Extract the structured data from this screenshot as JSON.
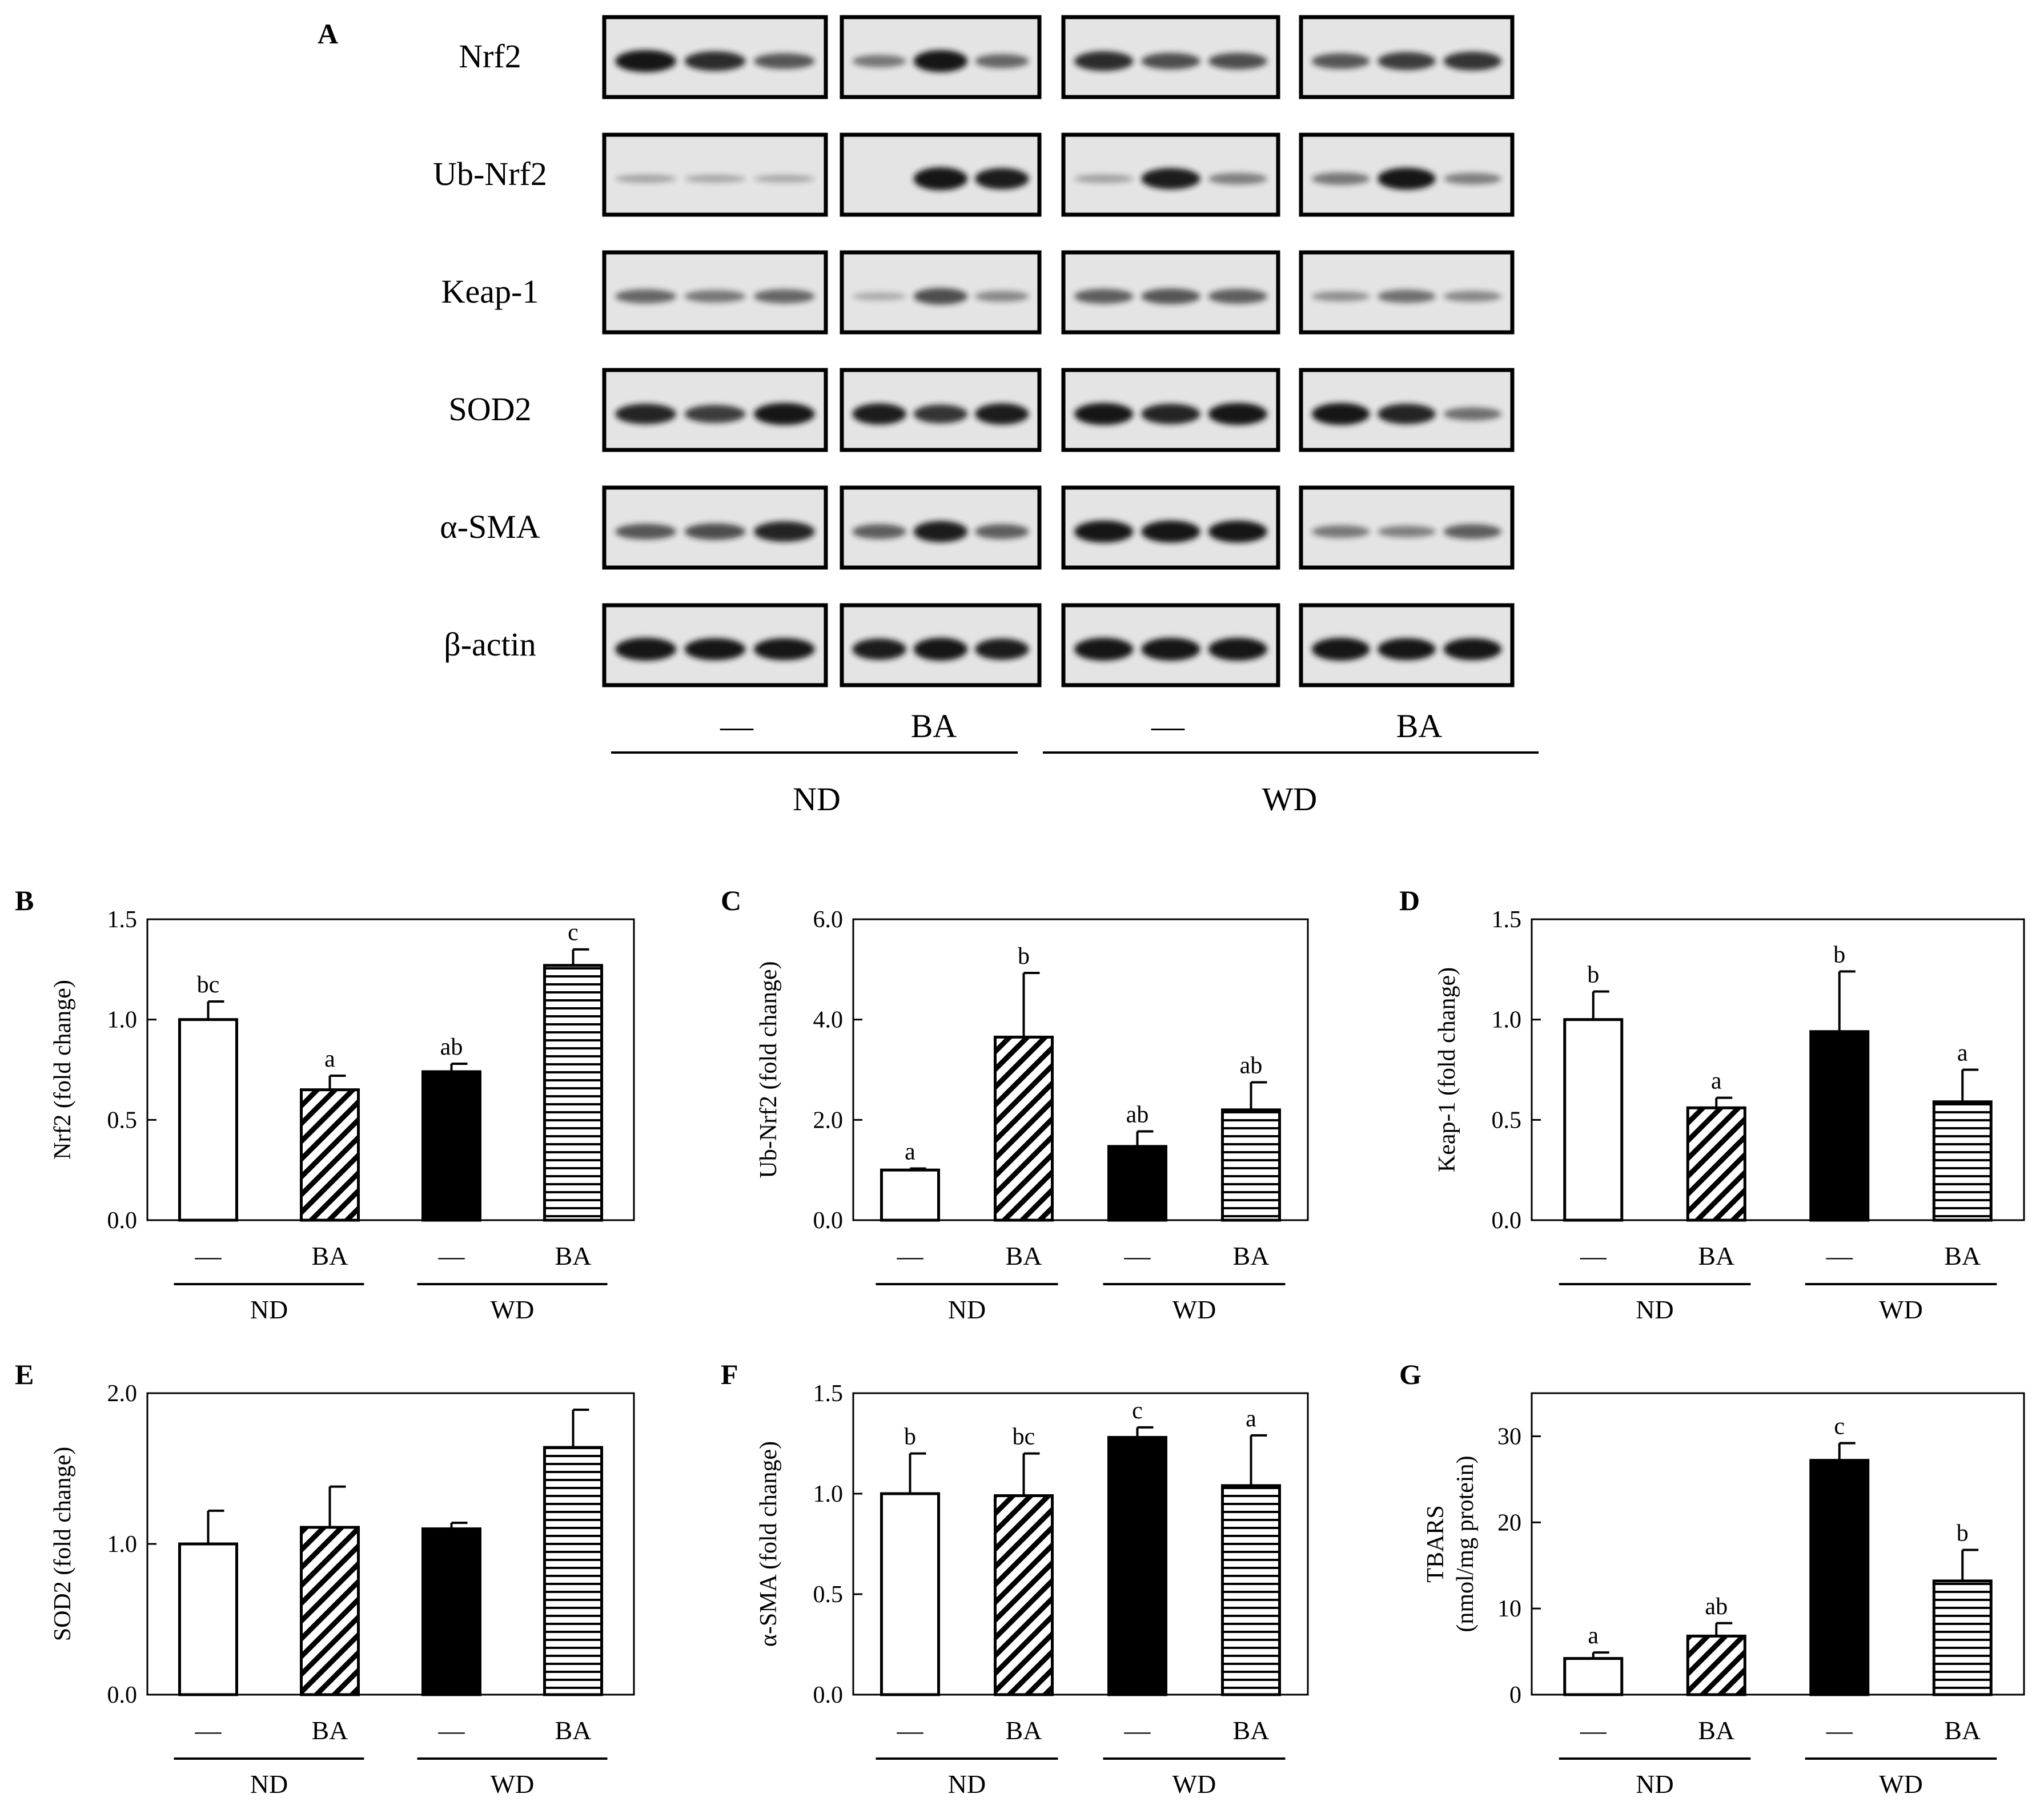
{
  "colors": {
    "ink": "#000000",
    "paper": "#ffffff",
    "blot_bg": "#e4e4e4",
    "band": "#141414"
  },
  "western_blot": {
    "panel_label": "A",
    "rows": [
      {
        "label": "Nrf2",
        "intensity": [
          [
            0.95,
            0.8,
            0.55
          ],
          [
            0.35,
            0.95,
            0.45
          ],
          [
            0.8,
            0.6,
            0.6
          ],
          [
            0.55,
            0.7,
            0.75
          ]
        ]
      },
      {
        "label": "Ub-Nrf2",
        "intensity": [
          [
            0.08,
            0.06,
            0.05
          ],
          [
            0.0,
            1.0,
            0.9
          ],
          [
            0.1,
            0.9,
            0.3
          ],
          [
            0.35,
            0.95,
            0.3
          ]
        ]
      },
      {
        "label": "Keap-1",
        "intensity": [
          [
            0.45,
            0.35,
            0.45
          ],
          [
            0.05,
            0.6,
            0.25
          ],
          [
            0.5,
            0.55,
            0.5
          ],
          [
            0.2,
            0.4,
            0.25
          ]
        ]
      },
      {
        "label": "SOD2",
        "intensity": [
          [
            0.85,
            0.7,
            0.95
          ],
          [
            0.9,
            0.75,
            0.9
          ],
          [
            0.95,
            0.85,
            0.95
          ],
          [
            0.95,
            0.85,
            0.4
          ]
        ]
      },
      {
        "label": "α-SMA",
        "intensity": [
          [
            0.55,
            0.6,
            0.85
          ],
          [
            0.5,
            0.9,
            0.5
          ],
          [
            0.95,
            0.95,
            0.95
          ],
          [
            0.35,
            0.3,
            0.5
          ]
        ]
      },
      {
        "label": "β-actin",
        "intensity": [
          [
            1.0,
            0.95,
            0.95
          ],
          [
            0.9,
            1.0,
            0.9
          ],
          [
            1.0,
            1.0,
            1.0
          ],
          [
            1.0,
            0.95,
            0.95
          ]
        ]
      }
    ],
    "treatments": [
      "—",
      "BA",
      "—",
      "BA"
    ],
    "diets": [
      "ND",
      "WD"
    ]
  },
  "chart_data": [
    {
      "panel": "B",
      "type": "bar",
      "ylabel": "Nrf2 (fold change)",
      "ylim": [
        0,
        1.5
      ],
      "yticks": [
        "0.0",
        "0.5",
        "1.0",
        "1.5"
      ],
      "yticks_values": [
        0,
        0.5,
        1.0,
        1.5
      ],
      "categories": [
        "—",
        "BA",
        "—",
        "BA"
      ],
      "groups": [
        "ND",
        "WD"
      ],
      "values": [
        1.0,
        0.65,
        0.74,
        1.27
      ],
      "errors": [
        0.09,
        0.07,
        0.04,
        0.08
      ],
      "letters": [
        "bc",
        "a",
        "ab",
        "c"
      ],
      "patterns": [
        "open",
        "diagonal",
        "solid",
        "horizontal"
      ]
    },
    {
      "panel": "C",
      "type": "bar",
      "ylabel": "Ub-Nrf2 (fold change)",
      "ylim": [
        0,
        6.0
      ],
      "yticks": [
        "0.0",
        "2.0",
        "4.0",
        "6.0"
      ],
      "yticks_values": [
        0,
        2,
        4,
        6
      ],
      "categories": [
        "—",
        "BA",
        "—",
        "BA"
      ],
      "groups": [
        "ND",
        "WD"
      ],
      "values": [
        1.0,
        3.65,
        1.47,
        2.2
      ],
      "errors": [
        0.03,
        1.28,
        0.3,
        0.55
      ],
      "letters": [
        "a",
        "b",
        "ab",
        "ab"
      ],
      "patterns": [
        "open",
        "diagonal",
        "solid",
        "horizontal"
      ]
    },
    {
      "panel": "D",
      "type": "bar",
      "ylabel": "Keap-1 (fold change)",
      "ylim": [
        0,
        1.5
      ],
      "yticks": [
        "0.0",
        "0.5",
        "1.0",
        "1.5"
      ],
      "yticks_values": [
        0,
        0.5,
        1.0,
        1.5
      ],
      "categories": [
        "—",
        "BA",
        "—",
        "BA"
      ],
      "groups": [
        "ND",
        "WD"
      ],
      "values": [
        1.0,
        0.56,
        0.94,
        0.59
      ],
      "errors": [
        0.14,
        0.05,
        0.3,
        0.16
      ],
      "letters": [
        "b",
        "a",
        "b",
        "a"
      ],
      "patterns": [
        "open",
        "diagonal",
        "solid",
        "horizontal"
      ]
    },
    {
      "panel": "E",
      "type": "bar",
      "ylabel": "SOD2 (fold change)",
      "ylim": [
        0,
        2.0
      ],
      "yticks": [
        "0.0",
        "1.0",
        "2.0"
      ],
      "yticks_values": [
        0,
        1,
        2
      ],
      "categories": [
        "—",
        "BA",
        "—",
        "BA"
      ],
      "groups": [
        "ND",
        "WD"
      ],
      "values": [
        1.0,
        1.11,
        1.1,
        1.64
      ],
      "errors": [
        0.22,
        0.27,
        0.04,
        0.25
      ],
      "letters": [
        "",
        "",
        "",
        ""
      ],
      "patterns": [
        "open",
        "diagonal",
        "solid",
        "horizontal"
      ]
    },
    {
      "panel": "F",
      "type": "bar",
      "ylabel": "α-SMA (fold change)",
      "ylim": [
        0,
        1.5
      ],
      "yticks": [
        "0.0",
        "0.5",
        "1.0",
        "1.5"
      ],
      "yticks_values": [
        0,
        0.5,
        1.0,
        1.5
      ],
      "categories": [
        "—",
        "BA",
        "—",
        "BA"
      ],
      "groups": [
        "ND",
        "WD"
      ],
      "values": [
        1.0,
        0.99,
        1.28,
        1.04
      ],
      "errors": [
        0.2,
        0.21,
        0.05,
        0.25
      ],
      "letters": [
        "b",
        "bc",
        "c",
        "a"
      ],
      "patterns": [
        "open",
        "diagonal",
        "solid",
        "horizontal"
      ]
    },
    {
      "panel": "G",
      "type": "bar",
      "ylabel": [
        "TBARS",
        "(nmol/mg protein)"
      ],
      "ylim": [
        0,
        35
      ],
      "yticks": [
        "0",
        "10",
        "20",
        "30"
      ],
      "yticks_values": [
        0,
        10,
        20,
        30
      ],
      "categories": [
        "—",
        "BA",
        "—",
        "BA"
      ],
      "groups": [
        "ND",
        "WD"
      ],
      "values": [
        4.2,
        6.8,
        27.2,
        13.2
      ],
      "errors": [
        0.7,
        1.5,
        2.0,
        3.6
      ],
      "letters": [
        "a",
        "ab",
        "c",
        "b"
      ],
      "patterns": [
        "open",
        "diagonal",
        "solid",
        "horizontal"
      ]
    }
  ]
}
